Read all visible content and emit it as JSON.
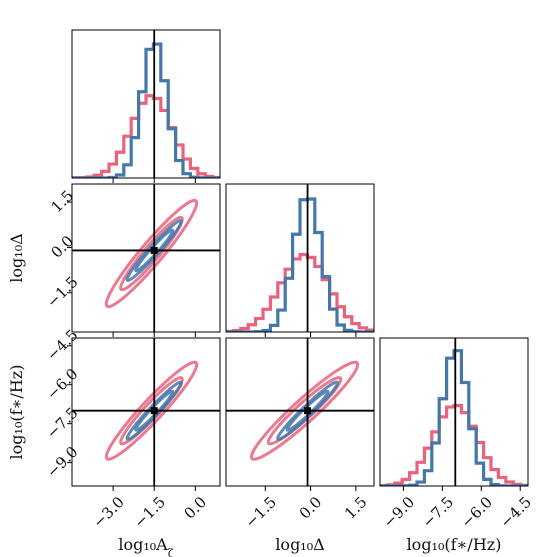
{
  "chart_data": {
    "type": "corner",
    "parameters": [
      {
        "name": "log10_A_zeta",
        "label": "log₁₀A",
        "label_sub": "ζ",
        "range": [
          -4.5,
          0.9
        ],
        "ticks": [
          -3.0,
          -1.5,
          0.0
        ],
        "tick_labels": [
          "−3.0",
          "−1.5",
          "0.0"
        ],
        "truth": -1.5
      },
      {
        "name": "log10_Delta",
        "label": "log₁₀Δ",
        "label_sub": "",
        "range": [
          -2.8,
          2.1
        ],
        "ticks": [
          -1.5,
          0.0,
          1.5
        ],
        "tick_labels": [
          "−1.5",
          "0.0",
          "1.5"
        ],
        "truth": -0.1
      },
      {
        "name": "log10_f_star",
        "label": "log₁₀(f∗/Hz)",
        "label_sub": "",
        "range": [
          -9.9,
          -4.2
        ],
        "ticks": [
          -9.0,
          -7.5,
          -6.0,
          -4.5
        ],
        "tick_labels": [
          "−9.0",
          "−7.5",
          "−6.0",
          "−4.5"
        ],
        "truth": -7.0
      }
    ],
    "series": [
      {
        "name": "",
        "color": "#e8637b",
        "mean": [
          -1.6,
          -0.2,
          -7.0
        ],
        "std": [
          0.75,
          0.8,
          0.85
        ],
        "corr": [
          0.95,
          0.95,
          0.95
        ]
      },
      {
        "name": "",
        "color": "#4477aa",
        "mean": [
          -1.5,
          -0.1,
          -7.0
        ],
        "std": [
          0.45,
          0.45,
          0.5
        ],
        "corr": [
          0.97,
          0.97,
          0.97
        ]
      }
    ],
    "hist_bins": 20,
    "grid": false,
    "legend": "none",
    "truth_color": "#000000"
  }
}
